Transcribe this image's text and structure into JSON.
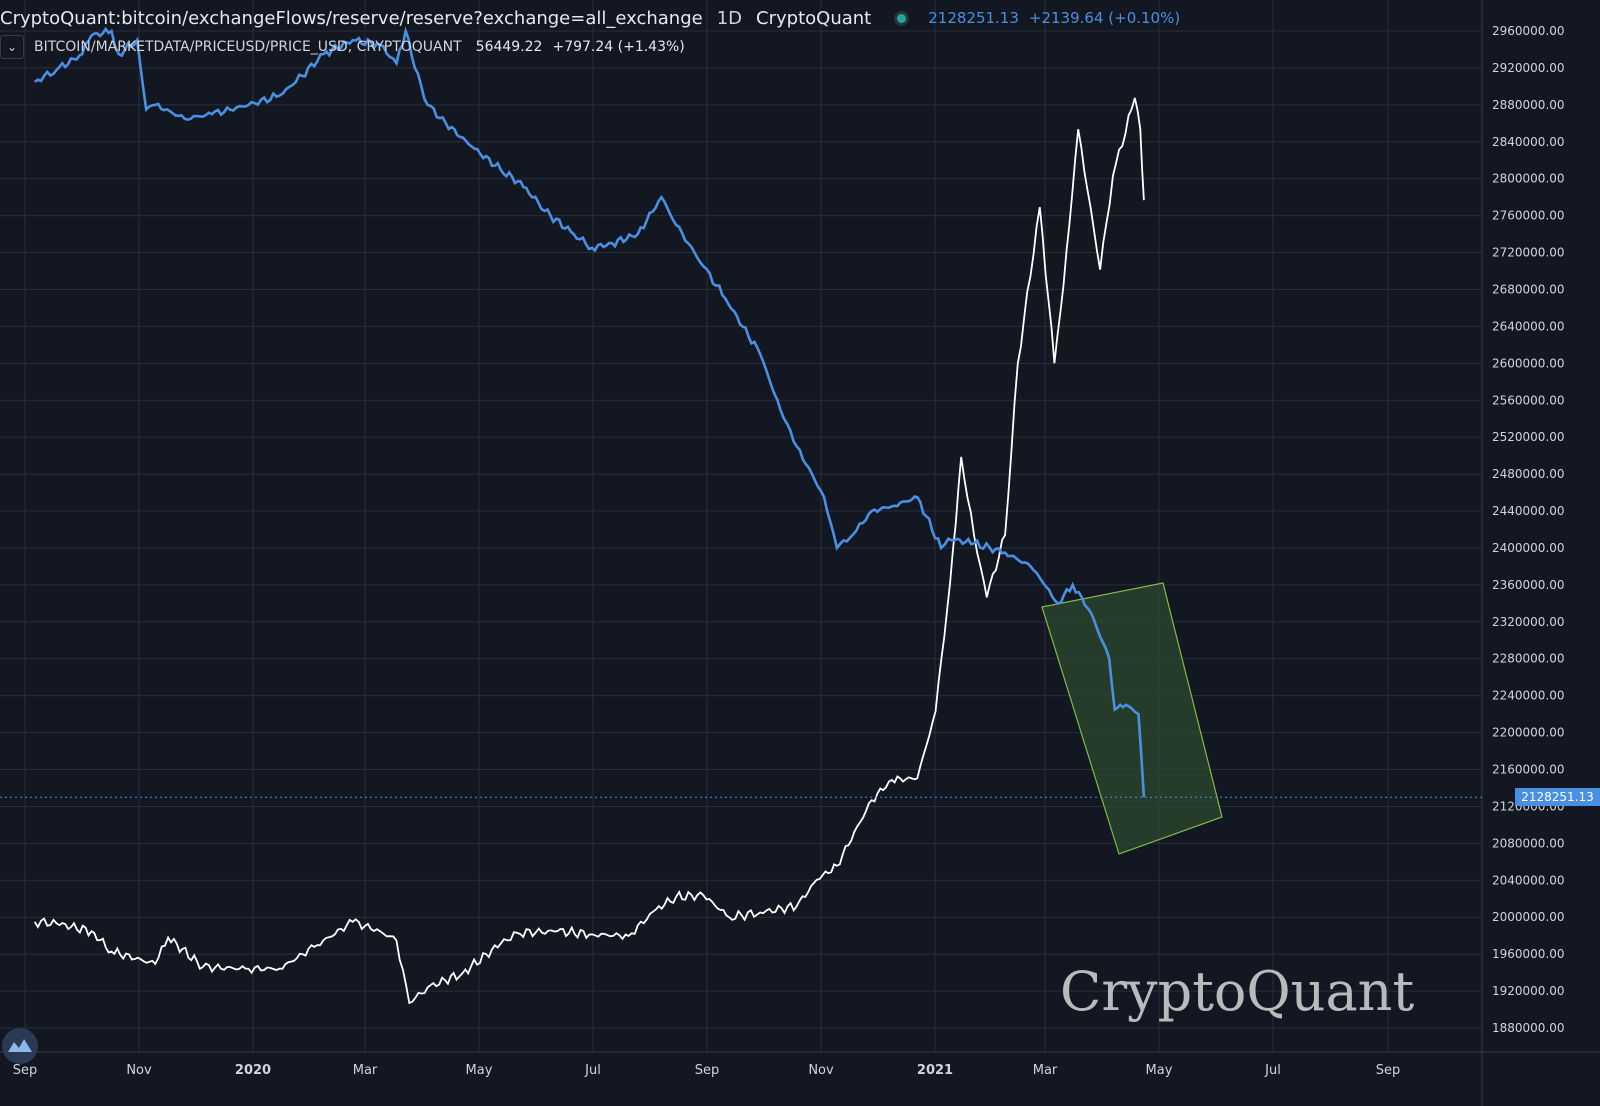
{
  "header": {
    "title": "CryptoQuant:bitcoin/exchangeFlows/reserve/reserve?exchange=all_exchange",
    "interval": "1D",
    "source": "CryptoQuant",
    "last_value": "2128251.13",
    "change": "+2139.64 (+0.10%)",
    "status_color": "#26a69a"
  },
  "overlay": {
    "title": "BITCOIN/MARKETDATA/PRICEUSD/PRICE_USD, CRYPTOQUANT",
    "last_value": "56449.22",
    "change": "+797.24 (+1.43%)"
  },
  "price_tag": "2128251.13",
  "watermark": "CryptoQuant",
  "icons": {
    "collapse": "chevron-down-icon",
    "logo": "tradingview-logo-icon"
  },
  "colors": {
    "background": "#131722",
    "reserve_line": "#4a90e2",
    "price_line": "#ffffff",
    "highlight_fill": "#2e4a2e",
    "highlight_stroke": "#7cbb4a"
  },
  "chart_data": {
    "type": "line",
    "x_ticks": [
      "Sep",
      "Nov",
      "2020",
      "Mar",
      "May",
      "Jul",
      "Sep",
      "Nov",
      "2021",
      "Mar",
      "May",
      "Jul",
      "Sep"
    ],
    "y_ticks": [
      "2960000.00",
      "2920000.00",
      "2880000.00",
      "2840000.00",
      "2800000.00",
      "2760000.00",
      "2720000.00",
      "2680000.00",
      "2640000.00",
      "2600000.00",
      "2560000.00",
      "2520000.00",
      "2480000.00",
      "2440000.00",
      "2400000.00",
      "2360000.00",
      "2320000.00",
      "2280000.00",
      "2240000.00",
      "2200000.00",
      "2160000.00",
      "2120000.00",
      "2080000.00",
      "2040000.00",
      "2000000.00",
      "1960000.00",
      "1920000.00",
      "1880000.00"
    ],
    "grid": true,
    "series": [
      {
        "name": "CryptoQuant:bitcoin/exchangeFlows/reserve/reserve?exchange=all_exchange",
        "x": [
          "2019-08-20",
          "2019-09-01",
          "2019-09-15",
          "2019-09-20",
          "2019-10-01",
          "2019-10-05",
          "2019-10-15",
          "2019-10-20",
          "2019-10-25",
          "2019-11-10",
          "2019-11-25",
          "2019-12-15",
          "2020-01-01",
          "2020-01-10",
          "2020-01-25",
          "2020-02-10",
          "2020-02-25",
          "2020-03-05",
          "2020-03-10",
          "2020-03-15",
          "2020-03-22",
          "2020-04-01",
          "2020-04-15",
          "2020-05-01",
          "2020-05-15",
          "2020-05-25",
          "2020-06-10",
          "2020-06-20",
          "2020-07-01",
          "2020-07-15",
          "2020-07-28",
          "2020-08-05",
          "2020-08-20",
          "2020-09-01",
          "2020-09-20",
          "2020-10-01",
          "2020-10-10",
          "2020-10-25",
          "2020-11-01",
          "2020-11-10",
          "2020-11-20",
          "2020-12-01",
          "2020-12-15",
          "2020-12-28",
          "2021-01-01",
          "2021-01-15",
          "2021-02-01",
          "2021-02-15",
          "2021-02-25",
          "2021-03-02",
          "2021-03-10",
          "2021-03-20",
          "2021-03-30",
          "2021-04-02",
          "2021-04-08",
          "2021-04-15",
          "2021-04-18"
        ],
        "values": [
          2905000,
          2918000,
          2935000,
          2955000,
          2960000,
          2935000,
          2950000,
          2875000,
          2880000,
          2865000,
          2870000,
          2880000,
          2890000,
          2905000,
          2935000,
          2950000,
          2945000,
          2925000,
          2960000,
          2920000,
          2880000,
          2860000,
          2835000,
          2810000,
          2790000,
          2765000,
          2740000,
          2725000,
          2730000,
          2740000,
          2780000,
          2750000,
          2705000,
          2670000,
          2610000,
          2550000,
          2510000,
          2455000,
          2400000,
          2415000,
          2440000,
          2445000,
          2455000,
          2400000,
          2410000,
          2405000,
          2395000,
          2380000,
          2355000,
          2340000,
          2360000,
          2330000,
          2280000,
          2225000,
          2230000,
          2220000,
          2130000
        ]
      },
      {
        "name": "BITCOIN/MARKETDATA/PRICEUSD/PRICE_USD, CRYPTOQUANT",
        "x": [
          "2019-08-20",
          "2019-09-01",
          "2019-09-20",
          "2019-10-01",
          "2019-10-25",
          "2019-11-01",
          "2019-11-20",
          "2019-12-15",
          "2020-01-01",
          "2020-01-20",
          "2020-02-10",
          "2020-02-25",
          "2020-03-05",
          "2020-03-12",
          "2020-03-22",
          "2020-04-10",
          "2020-05-01",
          "2020-05-10",
          "2020-06-01",
          "2020-06-20",
          "2020-07-10",
          "2020-07-25",
          "2020-08-05",
          "2020-08-20",
          "2020-09-03",
          "2020-09-20",
          "2020-10-10",
          "2020-10-21",
          "2020-11-01",
          "2020-11-20",
          "2020-12-01",
          "2020-12-15",
          "2020-12-25",
          "2021-01-02",
          "2021-01-08",
          "2021-01-15",
          "2021-01-22",
          "2021-02-01",
          "2021-02-08",
          "2021-02-20",
          "2021-02-28",
          "2021-03-05",
          "2021-03-13",
          "2021-03-25",
          "2021-04-01",
          "2021-04-13",
          "2021-04-16",
          "2021-04-18"
        ],
        "values": [
          10200,
          10100,
          9600,
          8300,
          7500,
          9200,
          7300,
          7200,
          7200,
          8600,
          10200,
          9600,
          9000,
          5000,
          6000,
          6900,
          8800,
          9500,
          9600,
          9400,
          9300,
          11000,
          11800,
          11900,
          10500,
          10800,
          11200,
          12900,
          13800,
          18000,
          19300,
          19400,
          23700,
          32000,
          40000,
          35000,
          31000,
          35000,
          46000,
          56000,
          46000,
          51000,
          61000,
          52000,
          58000,
          63000,
          61000,
          56449
        ]
      }
    ]
  }
}
